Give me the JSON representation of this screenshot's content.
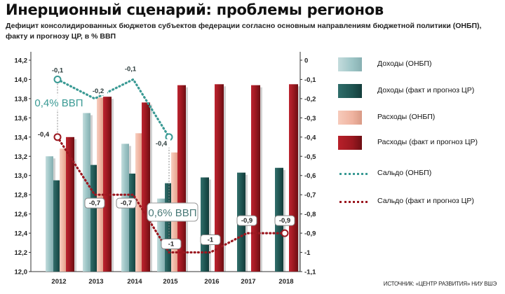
{
  "title": "Инерционный сценарий: проблемы регионов",
  "subtitle": "Дефицит консолидированных бюджетов субъектов федерации согласно основным направлениям бюджетной политики (ОНБП), факту и прогнозу ЦР, в % ВВП",
  "source": "ИСТОЧНИК: «ЦЕНТР РАЗВИТИЯ» НИУ ВШЭ",
  "colors": {
    "light_teal": "#9dc5c6",
    "dark_teal": "#1f5552",
    "pink": "#efb3a0",
    "dark_red": "#9b1820",
    "saldo_onbp": "#3a9a94",
    "saldo_fact": "#9b1820"
  },
  "annotations": {
    "onbp_gdp": "0,4% ВВП",
    "fact_gdp": "0,6% ВВП"
  },
  "legend": [
    {
      "label": "Доходы (ОНБП)",
      "kind": "box",
      "style": "light-teal"
    },
    {
      "label": "Доходы (факт и прогноз ЦР)",
      "kind": "box",
      "style": "dark-teal"
    },
    {
      "label": "Расходы (ОНБП)",
      "kind": "box",
      "style": "pink"
    },
    {
      "label": "Расходы (факт и прогноз ЦР)",
      "kind": "box",
      "style": "darkred"
    },
    {
      "label": "Сальдо (ОНБП)",
      "kind": "line",
      "color": "#3a9a94"
    },
    {
      "label": "Сальдо (факт и прогноз ЦР)",
      "kind": "line",
      "color": "#9b1820"
    }
  ],
  "chart_data": {
    "type": "bar",
    "categories": [
      "2012",
      "2013",
      "2014",
      "2015",
      "2016",
      "2017",
      "2018"
    ],
    "left_axis": {
      "range": [
        12.0,
        14.2
      ],
      "ticks": [
        "12,0",
        "12,2",
        "12,4",
        "12,6",
        "12,8",
        "13,0",
        "13,2",
        "13,4",
        "13,6",
        "13,8",
        "14,0",
        "14,2"
      ]
    },
    "right_axis": {
      "range": [
        -1.1,
        0
      ],
      "ticks": [
        "0",
        "-0,1",
        "-0,2",
        "-0,3",
        "-0,4",
        "-0,5",
        "-0,6",
        "-0,7",
        "-0,8",
        "-0,9",
        "-1",
        "-1,1"
      ]
    },
    "series": [
      {
        "name": "Доходы (ОНБП)",
        "axis": "left",
        "values": [
          13.2,
          13.65,
          13.33,
          12.76,
          null,
          null,
          null
        ]
      },
      {
        "name": "Доходы (факт и прогноз ЦР)",
        "axis": "left",
        "values": [
          12.95,
          13.11,
          13.02,
          12.92,
          12.98,
          13.03,
          13.08
        ]
      },
      {
        "name": "Расходы (ОНБП)",
        "axis": "left",
        "values": [
          13.28,
          13.81,
          13.44,
          13.24,
          null,
          null,
          null
        ]
      },
      {
        "name": "Расходы (факт и прогноз ЦР)",
        "axis": "left",
        "values": [
          13.4,
          13.82,
          13.76,
          13.94,
          13.95,
          13.94,
          13.95
        ]
      },
      {
        "name": "Сальдо (ОНБП)",
        "axis": "right",
        "values": [
          -0.1,
          -0.2,
          -0.1,
          -0.4,
          null,
          null,
          null
        ],
        "labels": [
          "-0,1",
          "-0,2",
          "-0,1",
          "-0,4",
          "",
          "",
          ""
        ]
      },
      {
        "name": "Сальдо (факт и прогноз ЦР)",
        "axis": "right",
        "values": [
          -0.4,
          -0.7,
          -0.7,
          -1.0,
          -1.0,
          -0.9,
          -0.9
        ],
        "labels": [
          "-0,4",
          "-0,7",
          "-0,7",
          "-1",
          "-1",
          "-0,9",
          "-0,9"
        ]
      }
    ],
    "xlabel": "",
    "ylabel": "",
    "grid": false,
    "legend_position": "right"
  }
}
